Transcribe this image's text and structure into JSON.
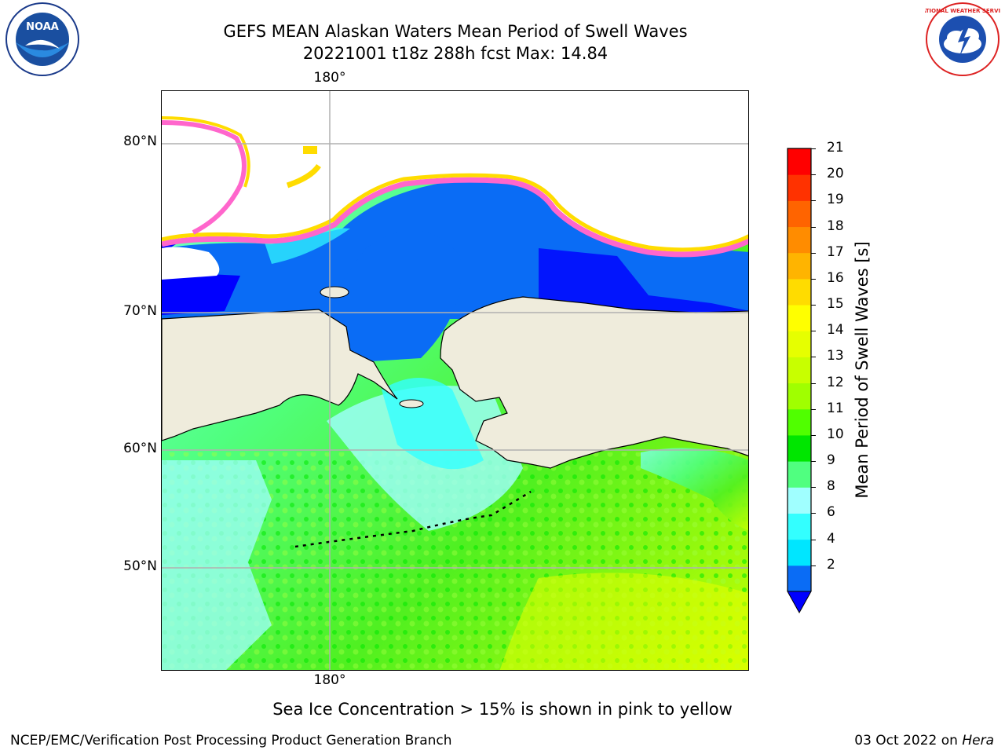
{
  "title": {
    "line1": "GEFS MEAN Alaskan Waters Mean Period of Swell Waves",
    "line2": "20221001 t18z 288h fcst   Max: 14.84"
  },
  "logos": {
    "left": "NOAA",
    "right": "NATIONAL WEATHER SERVICE"
  },
  "map": {
    "lat_labels": [
      "80°N",
      "70°N",
      "60°N",
      "50°N"
    ],
    "lon_label_top": "180°",
    "lon_label_bottom": "180°",
    "land_color": "#efecdc",
    "coastline_color": "#000000",
    "grid_color": "#b0b0b0"
  },
  "colorbar": {
    "label": "Mean Period of Swell Waves [s]",
    "ticks": [
      "21",
      "20",
      "19",
      "18",
      "17",
      "16",
      "15",
      "14",
      "13",
      "12",
      "11",
      "10",
      "9",
      "8",
      "6",
      "4",
      "2"
    ],
    "colors_bottom_to_top": [
      "#0a6cf5",
      "#00e6ff",
      "#33ffff",
      "#a0ffff",
      "#50ff80",
      "#00e600",
      "#50ff00",
      "#a0ff00",
      "#c8ff00",
      "#e6ff00",
      "#ffff00",
      "#ffdc00",
      "#ffb400",
      "#ff8c00",
      "#ff6400",
      "#ff3200",
      "#ff0000"
    ],
    "extend_color": "#0000ff"
  },
  "note": "Sea Ice Concentration > 15% is shown in pink to yellow",
  "footer": {
    "left": "NCEP/EMC/Verification Post Processing Product Generation Branch",
    "right_date": "03 Oct 2022 on",
    "right_host": "Hera"
  }
}
